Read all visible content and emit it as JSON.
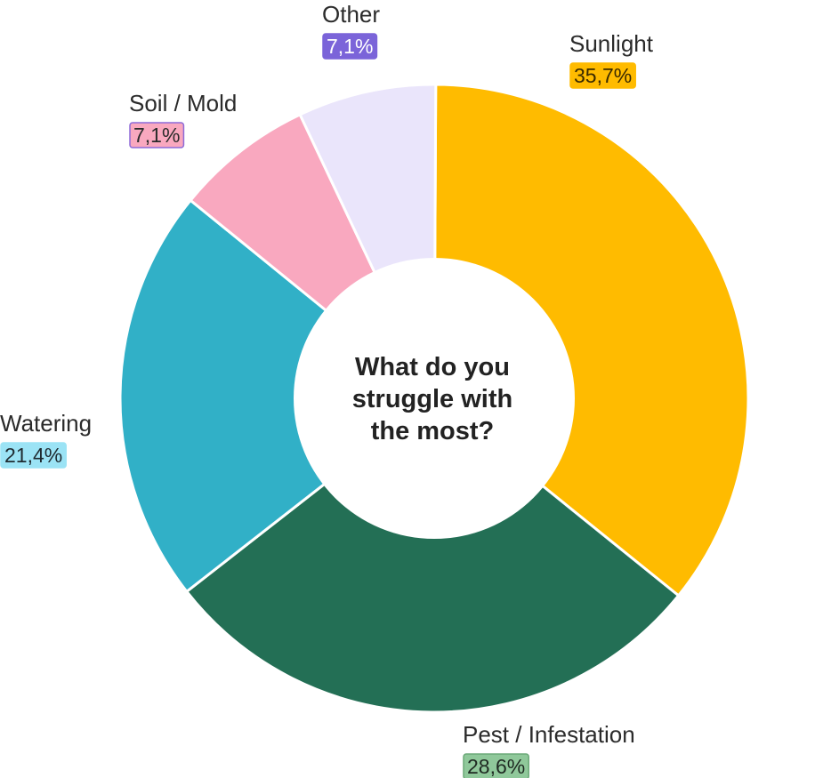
{
  "chart_data": {
    "type": "pie",
    "title": "What do you struggle with the most?",
    "title_lines": [
      "What do you",
      "struggle with",
      "the most?"
    ],
    "donut": true,
    "slices": [
      {
        "label": "Sunlight",
        "value": 35.7,
        "display": "35,7%",
        "color": "#FFBB00",
        "badge_bg": "#FFBB00",
        "badge_border": "#FFBB00",
        "badge_text": "#3a2a00"
      },
      {
        "label": "Pest / Infestation",
        "value": 28.6,
        "display": "28,6%",
        "color": "#236F55",
        "badge_bg": "#8FC89A",
        "badge_border": "#6aa877",
        "badge_text": "#1f2a22"
      },
      {
        "label": "Watering",
        "value": 21.4,
        "display": "21,4%",
        "color": "#31B0C7",
        "badge_bg": "#9BE3F5",
        "badge_border": "#9BE3F5",
        "badge_text": "#1f2a30"
      },
      {
        "label": "Soil / Mold",
        "value": 7.1,
        "display": "7,1%",
        "color": "#F9A8BF",
        "badge_bg": "#F9A8BF",
        "badge_border": "#8d6ad8",
        "badge_text": "#2b2b2b"
      },
      {
        "label": "Other",
        "value": 7.1,
        "display": "7,1%",
        "color": "#EAE5FB",
        "badge_bg": "#7B64D9",
        "badge_border": "#7B64D9",
        "badge_text": "#ffffff"
      }
    ],
    "legend": "none"
  }
}
